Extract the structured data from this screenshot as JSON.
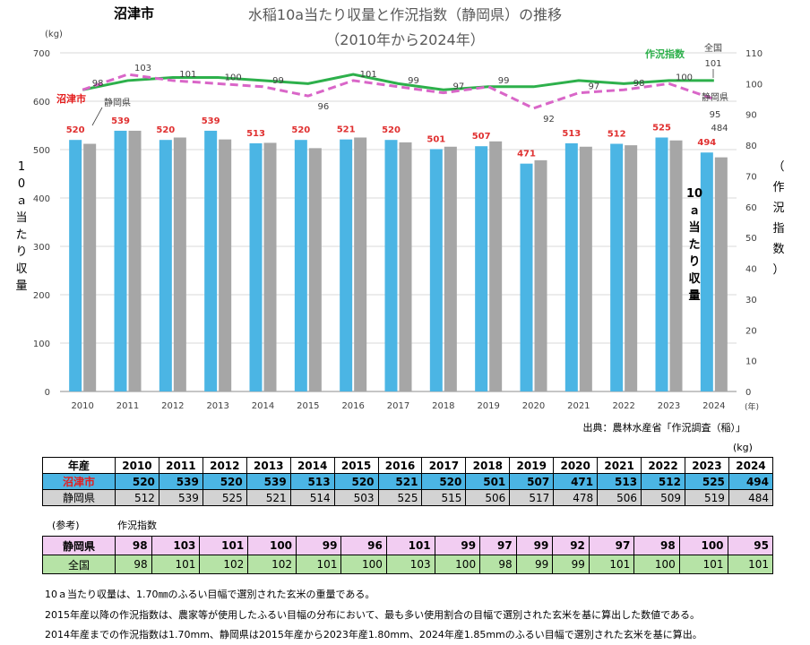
{
  "chart_data": {
    "type": "bar+line",
    "location_title": "沼津市",
    "title": "水稲10a当たり収量と作況指数（静岡県）の推移",
    "subtitle": "（2010年から2024年）",
    "left_unit": "(kg)",
    "left_axis_label": "10ａ当たり収量",
    "right_axis_label": "（作況指数）",
    "x_unit": "(年)",
    "inside_label_yield": "10ａ当たり収量",
    "ylim_left": [
      0,
      700
    ],
    "yticks_left": [
      0,
      100,
      200,
      300,
      400,
      500,
      600,
      700
    ],
    "ylim_right": [
      0,
      110
    ],
    "yticks_right": [
      0,
      10,
      20,
      30,
      40,
      50,
      60,
      70,
      80,
      90,
      100,
      110
    ],
    "categories": [
      "2010",
      "2011",
      "2012",
      "2013",
      "2014",
      "2015",
      "2016",
      "2017",
      "2018",
      "2019",
      "2020",
      "2021",
      "2022",
      "2023",
      "2024"
    ],
    "series": [
      {
        "name": "沼津市",
        "kind": "bar",
        "color": "#4bb5e4",
        "values": [
          520,
          539,
          520,
          539,
          513,
          520,
          521,
          520,
          501,
          507,
          471,
          513,
          512,
          525,
          494
        ]
      },
      {
        "name": "静岡県",
        "kind": "bar",
        "color": "#a6a6a6",
        "values": [
          512,
          539,
          525,
          521,
          514,
          503,
          525,
          515,
          506,
          517,
          478,
          506,
          509,
          519,
          484
        ]
      },
      {
        "name": "静岡県",
        "kind": "line",
        "style": "dashed",
        "color": "#d966c8",
        "values": [
          98,
          103,
          101,
          100,
          99,
          96,
          101,
          99,
          97,
          99,
          92,
          97,
          98,
          100,
          95
        ]
      },
      {
        "name": "全国",
        "kind": "line",
        "style": "solid",
        "color": "#2db04b",
        "values": [
          98,
          101,
          102,
          102,
          101,
          100,
          103,
          100,
          98,
          99,
          99,
          101,
          100,
          101,
          101
        ]
      }
    ],
    "legend_index_label": "作況指数",
    "legend_national": "全国",
    "legend_national_value": "101",
    "legend_shizuoka_idx": "静岡県",
    "legend_shizuoka_idx_value": "95",
    "legend_numazu": "沼津市",
    "legend_shizuoka": "静岡県",
    "last_shizuoka_yield": "484",
    "source": "出典：農林水産省「作況調査（稲）」"
  },
  "table": {
    "unit": "(kg)",
    "header_label": "年産",
    "years": [
      "2010",
      "2011",
      "2012",
      "2013",
      "2014",
      "2015",
      "2016",
      "2017",
      "2018",
      "2019",
      "2020",
      "2021",
      "2022",
      "2023",
      "2024"
    ],
    "numazu_label": "沼津市",
    "numazu": [
      "520",
      "539",
      "520",
      "539",
      "513",
      "520",
      "521",
      "520",
      "501",
      "507",
      "471",
      "513",
      "512",
      "525",
      "494"
    ],
    "shizuoka_label": "静岡県",
    "shizuoka": [
      "512",
      "539",
      "525",
      "521",
      "514",
      "503",
      "525",
      "515",
      "506",
      "517",
      "478",
      "506",
      "509",
      "519",
      "484"
    ],
    "reference_label": "(参考)",
    "index_label": "作況指数",
    "idx_shizuoka_label": "静岡県",
    "idx_shizuoka": [
      "98",
      "103",
      "101",
      "100",
      "99",
      "96",
      "101",
      "99",
      "97",
      "99",
      "92",
      "97",
      "98",
      "100",
      "95"
    ],
    "idx_national_label": "全国",
    "idx_national": [
      "98",
      "101",
      "102",
      "102",
      "101",
      "100",
      "103",
      "100",
      "98",
      "99",
      "99",
      "101",
      "100",
      "101",
      "101"
    ]
  },
  "notes": [
    "10ａ当たり収量は、1.70㎜のふるい目幅で選別された玄米の重量である。",
    "2015年産以降の作況指数は、農家等が使用したふるい目幅の分布において、最も多い使用割合の目幅で選別された玄米を基に算出した数値である。",
    "2014年産までの作況指数は1.70mm、静岡県は2015年産から2023年産1.80mm、2024年産1.85mmのふるい目幅で選別された玄米を基に算出。"
  ]
}
